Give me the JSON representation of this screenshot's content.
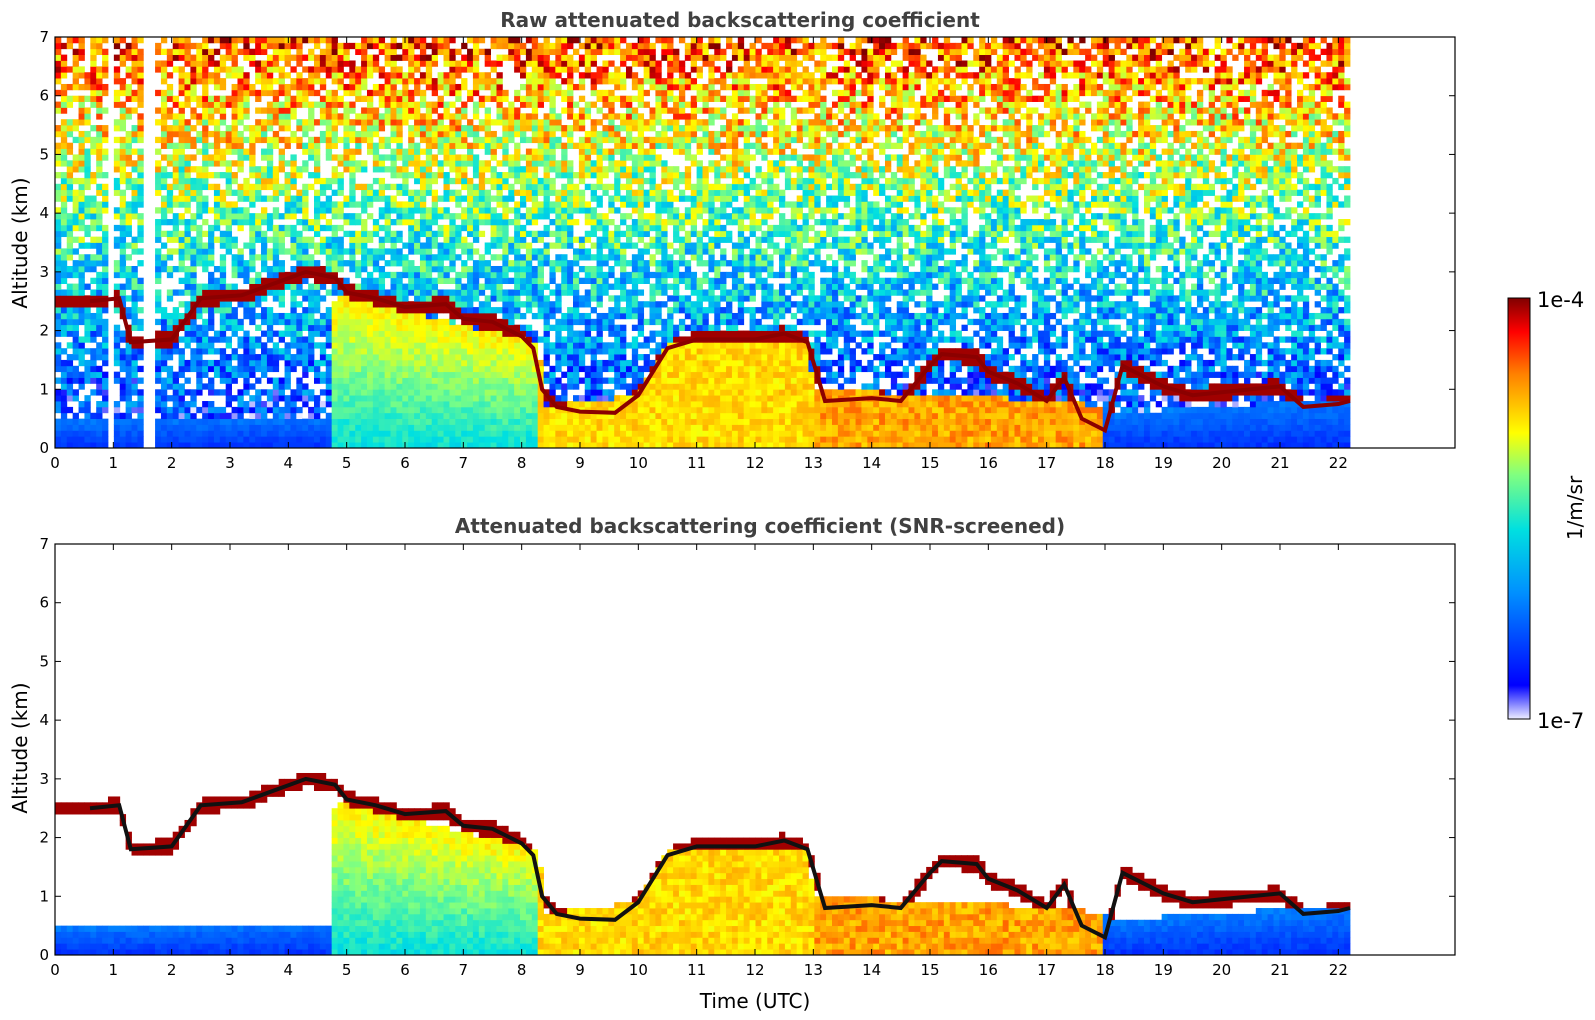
{
  "chart_data": [
    {
      "type": "heatmap",
      "title": "Raw attenuated backscattering coefficient",
      "xlabel": "",
      "ylabel": "Altitude (km)",
      "xlim": [
        0,
        24
      ],
      "ylim": [
        0,
        7
      ],
      "x_ticks": [
        0,
        1,
        2,
        3,
        4,
        5,
        6,
        7,
        8,
        9,
        10,
        11,
        12,
        13,
        14,
        15,
        16,
        17,
        18,
        19,
        20,
        21,
        22
      ],
      "y_ticks": [
        0,
        1,
        2,
        3,
        4,
        5,
        6,
        7
      ],
      "data_extent_hours": [
        0,
        22.2
      ],
      "missing_data_gaps_hours": [
        [
          0.38,
          0.42
        ],
        [
          0.6,
          0.64
        ],
        [
          0.93,
          1.0
        ],
        [
          1.55,
          1.58
        ],
        [
          1.63,
          1.67
        ],
        [
          9.45,
          9.5
        ],
        [
          9.65,
          9.7
        ]
      ],
      "noisy_background": true,
      "layers": [
        {
          "name": "cloud_base",
          "points": [
            [
              0.6,
              2.5
            ],
            [
              1.1,
              2.55
            ],
            [
              1.3,
              1.8
            ],
            [
              2.0,
              1.85
            ],
            [
              2.5,
              2.55
            ],
            [
              3.2,
              2.6
            ],
            [
              4.3,
              3.0
            ],
            [
              4.8,
              2.9
            ],
            [
              5.0,
              2.65
            ],
            [
              5.5,
              2.55
            ],
            [
              6.0,
              2.4
            ],
            [
              6.7,
              2.45
            ],
            [
              7.0,
              2.2
            ],
            [
              7.5,
              2.15
            ],
            [
              8.0,
              1.9
            ],
            [
              8.2,
              1.7
            ],
            [
              8.35,
              1.0
            ],
            [
              8.6,
              0.7
            ],
            [
              9.0,
              0.62
            ],
            [
              9.6,
              0.6
            ],
            [
              10.0,
              0.9
            ],
            [
              10.5,
              1.7
            ],
            [
              11.0,
              1.85
            ],
            [
              12.0,
              1.85
            ],
            [
              12.5,
              1.95
            ],
            [
              12.9,
              1.8
            ],
            [
              13.2,
              0.8
            ],
            [
              14.0,
              0.85
            ],
            [
              14.5,
              0.8
            ],
            [
              15.0,
              1.4
            ],
            [
              15.2,
              1.6
            ],
            [
              15.8,
              1.55
            ],
            [
              16.0,
              1.3
            ],
            [
              16.5,
              1.1
            ],
            [
              17.0,
              0.8
            ],
            [
              17.3,
              1.2
            ],
            [
              17.6,
              0.5
            ],
            [
              18.0,
              0.3
            ],
            [
              18.3,
              1.4
            ],
            [
              19.0,
              1.05
            ],
            [
              19.5,
              0.9
            ],
            [
              20.0,
              0.95
            ],
            [
              20.5,
              1.0
            ],
            [
              21.0,
              1.05
            ],
            [
              21.4,
              0.7
            ],
            [
              22.0,
              0.75
            ],
            [
              22.2,
              0.8
            ]
          ]
        },
        {
          "name": "boundary_layer_top",
          "points": [
            [
              0,
              0.5
            ],
            [
              4.7,
              0.55
            ],
            [
              4.8,
              2.6
            ],
            [
              8.3,
              1.8
            ],
            [
              8.4,
              0.7
            ],
            [
              10.0,
              0.9
            ],
            [
              10.5,
              1.8
            ],
            [
              12.9,
              1.8
            ],
            [
              13.0,
              1.0
            ],
            [
              17.5,
              0.8
            ],
            [
              18.2,
              0.6
            ],
            [
              22.2,
              0.85
            ]
          ]
        }
      ],
      "colorbar": {
        "label": "1/m/sr",
        "min": "1e-7",
        "max": "1e-4"
      }
    },
    {
      "type": "heatmap",
      "title": "Attenuated backscattering coefficient (SNR-screened)",
      "xlabel": "Time (UTC)",
      "ylabel": "Altitude (km)",
      "xlim": [
        0,
        24
      ],
      "ylim": [
        0,
        7
      ],
      "x_ticks": [
        0,
        1,
        2,
        3,
        4,
        5,
        6,
        7,
        8,
        9,
        10,
        11,
        12,
        13,
        14,
        15,
        16,
        17,
        18,
        19,
        20,
        21,
        22
      ],
      "y_ticks": [
        0,
        1,
        2,
        3,
        4,
        5,
        6,
        7
      ],
      "data_extent_hours": [
        0,
        22.2
      ],
      "noisy_background": false,
      "colorbar": {
        "label": "1/m/sr",
        "min": "1e-7",
        "max": "1e-4"
      }
    }
  ],
  "colorbar": {
    "label": "1/m/sr",
    "min_label": "1e-7",
    "max_label": "1e-4"
  }
}
